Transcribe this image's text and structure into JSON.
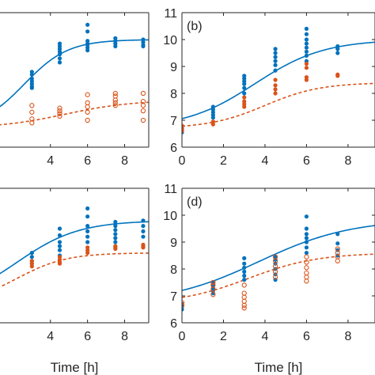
{
  "colors": {
    "series_blue": "#0072BD",
    "series_orange": "#D95319",
    "axis": "#262626"
  },
  "chart_data": [
    {
      "type": "scatter",
      "panel_label": "",
      "xlabel": "",
      "xlim": [
        0,
        9.3
      ],
      "ylim": [
        6,
        11
      ],
      "xticks": [
        4,
        6,
        8
      ],
      "yticks": [],
      "box": true,
      "grid": false,
      "fit": {
        "model": "logistic",
        "solid": {
          "L": 10.0,
          "A": 6.7,
          "k": 0.85,
          "t0": 2.6
        },
        "dashed": {
          "L": 7.75,
          "A": 6.7,
          "k": 0.55,
          "t0": 4.8
        }
      },
      "series": [
        {
          "marker": "filled",
          "points": [
            [
              3,
              8.2
            ],
            [
              3,
              8.25
            ],
            [
              3,
              8.35
            ],
            [
              3,
              8.45
            ],
            [
              3,
              8.55
            ],
            [
              3,
              8.7
            ],
            [
              3,
              8.8
            ],
            [
              4.5,
              9.15
            ],
            [
              4.5,
              9.3
            ],
            [
              4.5,
              9.45
            ],
            [
              4.5,
              9.55
            ],
            [
              4.5,
              9.65
            ],
            [
              4.5,
              9.75
            ],
            [
              4.5,
              9.85
            ],
            [
              6,
              9.6
            ],
            [
              6,
              9.7
            ],
            [
              6,
              9.8
            ],
            [
              6,
              9.85
            ],
            [
              6,
              9.95
            ],
            [
              6,
              10.3
            ],
            [
              6,
              10.55
            ],
            [
              7.5,
              9.75
            ],
            [
              7.5,
              9.85
            ],
            [
              7.5,
              9.95
            ],
            [
              7.5,
              10.05
            ],
            [
              9,
              9.75
            ],
            [
              9,
              9.8
            ],
            [
              9,
              9.9
            ],
            [
              9,
              10.0
            ]
          ]
        },
        {
          "marker": "open",
          "points": [
            [
              3,
              6.9
            ],
            [
              3,
              7.05
            ],
            [
              3,
              7.3
            ],
            [
              3,
              7.55
            ],
            [
              4.5,
              7.15
            ],
            [
              4.5,
              7.25
            ],
            [
              4.5,
              7.35
            ],
            [
              4.5,
              7.45
            ],
            [
              6,
              7.0
            ],
            [
              6,
              7.3
            ],
            [
              6,
              7.5
            ],
            [
              6,
              7.65
            ],
            [
              6,
              7.95
            ],
            [
              7.5,
              7.55
            ],
            [
              7.5,
              7.65
            ],
            [
              7.5,
              7.75
            ],
            [
              7.5,
              7.9
            ],
            [
              7.5,
              8.0
            ],
            [
              9,
              7.0
            ],
            [
              9,
              7.35
            ],
            [
              9,
              7.55
            ],
            [
              9,
              7.7
            ],
            [
              9,
              8.0
            ]
          ]
        }
      ]
    },
    {
      "type": "scatter",
      "panel_label": "(b)",
      "xlabel": "",
      "xlim": [
        0,
        9.3
      ],
      "ylim": [
        6,
        11
      ],
      "xticks": [
        0,
        2,
        4,
        6,
        8
      ],
      "yticks": [
        6,
        7,
        8,
        9,
        10,
        11
      ],
      "box": true,
      "grid": false,
      "fit": {
        "model": "logistic",
        "solid": {
          "L": 10.0,
          "A": 6.7,
          "k": 0.6,
          "t0": 3.5
        },
        "dashed": {
          "L": 8.4,
          "A": 6.7,
          "k": 0.75,
          "t0": 4.0
        }
      },
      "series": [
        {
          "marker": "filled",
          "points": [
            [
              0,
              6.55
            ],
            [
              0,
              6.65
            ],
            [
              0,
              6.75
            ],
            [
              1.5,
              7.1
            ],
            [
              1.5,
              7.2
            ],
            [
              1.5,
              7.3
            ],
            [
              1.5,
              7.4
            ],
            [
              1.5,
              7.5
            ],
            [
              3,
              8.0
            ],
            [
              3,
              8.2
            ],
            [
              3,
              8.35
            ],
            [
              3,
              8.45
            ],
            [
              3,
              8.55
            ],
            [
              3,
              8.65
            ],
            [
              4.5,
              8.85
            ],
            [
              4.5,
              9.05
            ],
            [
              4.5,
              9.2
            ],
            [
              4.5,
              9.35
            ],
            [
              4.5,
              9.5
            ],
            [
              4.5,
              9.65
            ],
            [
              6,
              9.2
            ],
            [
              6,
              9.4
            ],
            [
              6,
              9.55
            ],
            [
              6,
              9.7
            ],
            [
              6,
              9.85
            ],
            [
              6,
              10.0
            ],
            [
              6,
              10.2
            ],
            [
              6,
              10.4
            ],
            [
              7.5,
              9.5
            ],
            [
              7.5,
              9.65
            ],
            [
              7.5,
              9.75
            ]
          ]
        },
        {
          "marker": "filled",
          "points": [
            [
              0,
              6.6
            ],
            [
              0,
              6.7
            ],
            [
              0,
              6.8
            ],
            [
              1.5,
              6.85
            ],
            [
              1.5,
              6.95
            ],
            [
              3,
              7.5
            ],
            [
              3,
              7.6
            ],
            [
              3,
              7.7
            ],
            [
              3,
              7.85
            ],
            [
              4.5,
              8.0
            ],
            [
              4.5,
              8.15
            ],
            [
              4.5,
              8.3
            ],
            [
              4.5,
              8.5
            ],
            [
              6,
              8.5
            ],
            [
              6,
              8.6
            ],
            [
              6,
              8.95
            ],
            [
              6,
              9.1
            ],
            [
              7.5,
              8.65
            ],
            [
              7.5,
              8.7
            ]
          ]
        }
      ]
    },
    {
      "type": "scatter",
      "panel_label": "",
      "xlabel": "Time [h]",
      "xlim": [
        0,
        9.3
      ],
      "ylim": [
        6,
        11
      ],
      "xticks": [
        4,
        6,
        8
      ],
      "yticks": [],
      "box": true,
      "grid": false,
      "fit": {
        "model": "logistic",
        "solid": {
          "L": 9.8,
          "A": 6.7,
          "k": 0.6,
          "t0": 2.2
        },
        "dashed": {
          "L": 8.6,
          "A": 6.7,
          "k": 0.75,
          "t0": 2.2
        }
      },
      "series": [
        {
          "marker": "filled",
          "points": [
            [
              3,
              8.2
            ],
            [
              3,
              8.3
            ],
            [
              3,
              8.45
            ],
            [
              3,
              8.6
            ],
            [
              4.5,
              8.5
            ],
            [
              4.5,
              8.7
            ],
            [
              4.5,
              8.85
            ],
            [
              4.5,
              9.0
            ],
            [
              4.5,
              9.25
            ],
            [
              4.5,
              9.5
            ],
            [
              6,
              9.0
            ],
            [
              6,
              9.2
            ],
            [
              6,
              9.4
            ],
            [
              6,
              9.6
            ],
            [
              6,
              9.95
            ],
            [
              6,
              10.25
            ],
            [
              7.5,
              9.0
            ],
            [
              7.5,
              9.15
            ],
            [
              7.5,
              9.3
            ],
            [
              7.5,
              9.45
            ],
            [
              7.5,
              9.6
            ],
            [
              7.5,
              9.75
            ],
            [
              9,
              9.2
            ],
            [
              9,
              9.4
            ],
            [
              9,
              9.6
            ],
            [
              9,
              9.8
            ]
          ]
        },
        {
          "marker": "filled",
          "points": [
            [
              3,
              8.1
            ],
            [
              3,
              8.2
            ],
            [
              3,
              8.3
            ],
            [
              4.5,
              8.2
            ],
            [
              4.5,
              8.25
            ],
            [
              4.5,
              8.35
            ],
            [
              4.5,
              8.45
            ],
            [
              6,
              8.6
            ],
            [
              6,
              8.7
            ],
            [
              6,
              8.8
            ],
            [
              7.5,
              8.75
            ],
            [
              7.5,
              8.8
            ],
            [
              7.5,
              8.85
            ],
            [
              9,
              8.8
            ],
            [
              9,
              8.85
            ],
            [
              9,
              8.9
            ]
          ]
        }
      ]
    },
    {
      "type": "scatter",
      "panel_label": "(d)",
      "xlabel": "Time [h]",
      "xlim": [
        0,
        9.3
      ],
      "ylim": [
        6,
        11
      ],
      "xticks": [
        0,
        2,
        4,
        6,
        8
      ],
      "yticks": [
        6,
        7,
        8,
        9,
        10,
        11
      ],
      "box": true,
      "grid": false,
      "fit": {
        "model": "logistic",
        "solid": {
          "L": 9.85,
          "A": 6.7,
          "k": 0.45,
          "t0": 3.7
        },
        "dashed": {
          "L": 8.6,
          "A": 6.7,
          "k": 0.6,
          "t0": 3.2
        }
      },
      "series": [
        {
          "marker": "filled",
          "points": [
            [
              0,
              6.5
            ],
            [
              0,
              6.6
            ],
            [
              0,
              6.7
            ],
            [
              1.5,
              7.1
            ],
            [
              1.5,
              7.2
            ],
            [
              1.5,
              7.3
            ],
            [
              1.5,
              7.4
            ],
            [
              1.5,
              7.5
            ],
            [
              3,
              7.6
            ],
            [
              3,
              7.75
            ],
            [
              3,
              7.9
            ],
            [
              3,
              8.05
            ],
            [
              3,
              8.2
            ],
            [
              3,
              8.4
            ],
            [
              4.5,
              7.6
            ],
            [
              4.5,
              7.8
            ],
            [
              4.5,
              8.0
            ],
            [
              4.5,
              8.2
            ],
            [
              4.5,
              8.35
            ],
            [
              4.5,
              8.45
            ],
            [
              6,
              8.6
            ],
            [
              6,
              8.8
            ],
            [
              6,
              9.0
            ],
            [
              6,
              9.15
            ],
            [
              6,
              9.3
            ],
            [
              6,
              9.5
            ],
            [
              6,
              9.95
            ],
            [
              7.5,
              8.5
            ],
            [
              7.5,
              8.7
            ],
            [
              7.5,
              8.95
            ],
            [
              7.5,
              9.3
            ]
          ]
        },
        {
          "marker": "open",
          "points": [
            [
              0,
              6.65
            ],
            [
              0,
              6.75
            ],
            [
              1.5,
              7.05
            ],
            [
              1.5,
              7.25
            ],
            [
              1.5,
              7.4
            ],
            [
              1.5,
              7.5
            ],
            [
              3,
              6.55
            ],
            [
              3,
              6.65
            ],
            [
              3,
              6.8
            ],
            [
              3,
              6.95
            ],
            [
              3,
              7.1
            ],
            [
              3,
              7.4
            ],
            [
              4.5,
              7.7
            ],
            [
              4.5,
              7.9
            ],
            [
              4.5,
              8.1
            ],
            [
              4.5,
              8.3
            ],
            [
              4.5,
              8.45
            ],
            [
              6,
              7.55
            ],
            [
              6,
              7.7
            ],
            [
              6,
              7.85
            ],
            [
              6,
              8.05
            ],
            [
              6,
              8.25
            ],
            [
              6,
              8.45
            ],
            [
              7.5,
              8.3
            ],
            [
              7.5,
              8.45
            ],
            [
              7.5,
              8.6
            ],
            [
              7.5,
              8.75
            ]
          ]
        }
      ]
    }
  ]
}
